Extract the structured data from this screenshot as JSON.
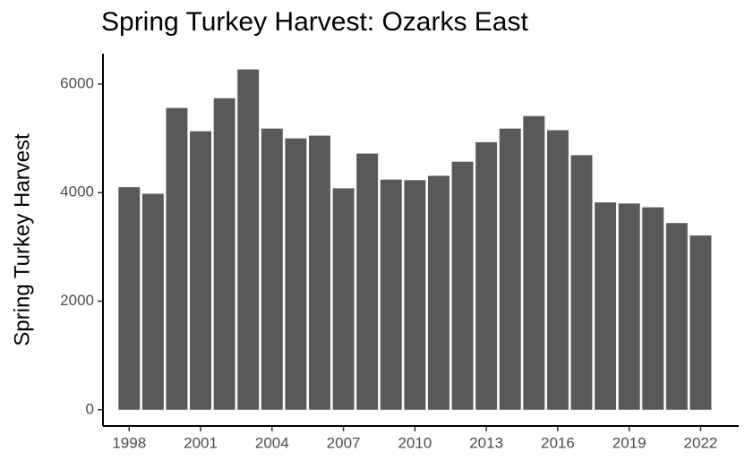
{
  "chart_data": {
    "type": "bar",
    "title": "Spring Turkey Harvest: Ozarks East",
    "y_label": "Spring Turkey Harvest",
    "x": [
      1998,
      1999,
      2000,
      2001,
      2002,
      2003,
      2004,
      2005,
      2006,
      2007,
      2008,
      2009,
      2010,
      2011,
      2012,
      2013,
      2014,
      2015,
      2016,
      2017,
      2018,
      2019,
      2020,
      2021,
      2022
    ],
    "values": [
      4100,
      3980,
      5560,
      5130,
      5740,
      6270,
      5180,
      5000,
      5050,
      4080,
      4720,
      4240,
      4230,
      4310,
      4570,
      4930,
      5180,
      5410,
      5150,
      4690,
      3820,
      3800,
      3730,
      3440,
      3210
    ],
    "color": "#595959",
    "xlim": [
      1996.9,
      2023.6
    ],
    "xticks": [
      1998,
      2001,
      2004,
      2007,
      2010,
      2013,
      2016,
      2019,
      2022
    ],
    "ylim": [
      -300,
      6560
    ],
    "yticks": [
      0,
      2000,
      4000,
      6000
    ],
    "grid": false
  }
}
